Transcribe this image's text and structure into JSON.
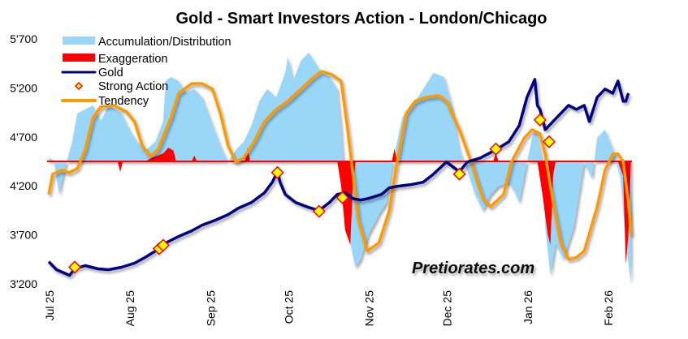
{
  "chart_data": {
    "type": "line",
    "title": "Gold - Smart Investors Action - London/Chicago",
    "watermark": "Pretiorates.com",
    "xlabel": "",
    "ylabel": "",
    "ylim": [
      3200,
      5700
    ],
    "y_ticks": [
      {
        "v": 5700,
        "label": "5'700"
      },
      {
        "v": 5200,
        "label": "5'200"
      },
      {
        "v": 4700,
        "label": "4'700"
      },
      {
        "v": 4200,
        "label": "4'200"
      },
      {
        "v": 3700,
        "label": "3'700"
      },
      {
        "v": 3200,
        "label": "3'200"
      }
    ],
    "x_unit": "days since 1 Jul 2025",
    "xlim": [
      0,
      225
    ],
    "x_ticks": [
      {
        "d": 0,
        "label": "Jul 25"
      },
      {
        "d": 31,
        "label": "Aug 25"
      },
      {
        "d": 62,
        "label": "Sep 25"
      },
      {
        "d": 92,
        "label": "Oct 25"
      },
      {
        "d": 123,
        "label": "Nov 25"
      },
      {
        "d": 153,
        "label": "Dec 25"
      },
      {
        "d": 184,
        "label": "Jan 26"
      },
      {
        "d": 215,
        "label": "Feb 26"
      }
    ],
    "baseline": 4450,
    "legend": {
      "position": "top-left",
      "entries": [
        {
          "key": "acc",
          "label": "Accumulation/Distribution",
          "color": "#99d6f7"
        },
        {
          "key": "exag",
          "label": "Exaggeration",
          "color": "#ff0000"
        },
        {
          "key": "gold",
          "label": "Gold",
          "color": "#000080"
        },
        {
          "key": "strong",
          "label": "Strong Action",
          "color": "#ffff00"
        },
        {
          "key": "tend",
          "label": "Tendency",
          "color": "#ff9900"
        }
      ]
    },
    "series": {
      "acc": [
        [
          0,
          4485
        ],
        [
          2,
          4460
        ],
        [
          4,
          4113
        ],
        [
          6,
          4361
        ],
        [
          9,
          4650
        ],
        [
          11,
          4940
        ],
        [
          14,
          4981
        ],
        [
          17,
          5022
        ],
        [
          20,
          4857
        ],
        [
          23,
          5022
        ],
        [
          28,
          4940
        ],
        [
          31,
          4774
        ],
        [
          34,
          4650
        ],
        [
          37.5,
          4568
        ],
        [
          41,
          4650
        ],
        [
          44,
          4857
        ],
        [
          45,
          5270
        ],
        [
          47,
          5312
        ],
        [
          50,
          5270
        ],
        [
          53,
          5146
        ],
        [
          56,
          5188
        ],
        [
          59,
          5105
        ],
        [
          62.5,
          4857
        ],
        [
          66,
          4609
        ],
        [
          69,
          4444
        ],
        [
          72,
          4568
        ],
        [
          75,
          4650
        ],
        [
          78,
          4816
        ],
        [
          81,
          5064
        ],
        [
          84,
          5188
        ],
        [
          87.5,
          5105
        ],
        [
          91,
          5353
        ],
        [
          92,
          5518
        ],
        [
          94,
          5270
        ],
        [
          97,
          5477
        ],
        [
          100,
          5560
        ],
        [
          102,
          5477
        ],
        [
          105,
          5353
        ],
        [
          108,
          5312
        ],
        [
          111,
          5188
        ],
        [
          112.5,
          4774
        ],
        [
          114,
          4196
        ],
        [
          116,
          3617
        ],
        [
          118,
          3370
        ],
        [
          120,
          3452
        ],
        [
          123,
          3700
        ],
        [
          127,
          3907
        ],
        [
          130,
          4031
        ],
        [
          133,
          4526
        ],
        [
          136,
          4898
        ],
        [
          139,
          5022
        ],
        [
          142,
          5105
        ],
        [
          145,
          5229
        ],
        [
          148,
          5353
        ],
        [
          152,
          5312
        ],
        [
          155,
          5022
        ],
        [
          158,
          4568
        ],
        [
          161,
          4361
        ],
        [
          164,
          4113
        ],
        [
          167,
          3948
        ],
        [
          170,
          4113
        ],
        [
          173,
          4196
        ],
        [
          177,
          4237
        ],
        [
          179,
          4155
        ],
        [
          181,
          4031
        ],
        [
          184,
          4444
        ],
        [
          186,
          4692
        ],
        [
          187.5,
          4774
        ],
        [
          190,
          4444
        ],
        [
          191,
          3783
        ],
        [
          193,
          3287
        ],
        [
          195,
          3617
        ],
        [
          198,
          3452
        ],
        [
          202,
          3783
        ],
        [
          204,
          4113
        ],
        [
          206,
          4444
        ],
        [
          209,
          4279
        ],
        [
          211,
          4692
        ],
        [
          214,
          4774
        ],
        [
          217,
          4568
        ],
        [
          220,
          4279
        ],
        [
          222,
          3617
        ],
        [
          224,
          3204
        ]
      ],
      "exag": [
        [
          [
            26.5,
            4450
          ],
          [
            27.5,
            4340
          ],
          [
            28.5,
            4450
          ]
        ],
        [
          [
            37,
            4450
          ],
          [
            40,
            4490
          ],
          [
            44,
            4530
          ],
          [
            46,
            4590
          ],
          [
            48,
            4560
          ],
          [
            49,
            4450
          ]
        ],
        [
          [
            55,
            4450
          ],
          [
            56,
            4510
          ],
          [
            57,
            4450
          ]
        ],
        [
          [
            75.5,
            4450
          ],
          [
            76.5,
            4590
          ],
          [
            77.5,
            4450
          ]
        ],
        [
          [
            111,
            4450
          ],
          [
            112.5,
            4200
          ],
          [
            114,
            3750
          ],
          [
            116,
            3600
          ],
          [
            117,
            4200
          ],
          [
            118,
            4450
          ]
        ],
        [
          [
            132,
            4450
          ],
          [
            133,
            4580
          ],
          [
            134,
            4450
          ]
        ],
        [
          [
            171,
            4450
          ],
          [
            172,
            4540
          ],
          [
            173,
            4450
          ]
        ],
        [
          [
            188,
            4450
          ],
          [
            190,
            4100
          ],
          [
            192,
            3700
          ],
          [
            193,
            3600
          ],
          [
            194,
            4300
          ],
          [
            195,
            4450
          ]
        ],
        [
          [
            219,
            4450
          ],
          [
            221,
            4300
          ],
          [
            222,
            3400
          ],
          [
            223,
            3700
          ],
          [
            224,
            4450
          ]
        ]
      ],
      "gold": [
        [
          0,
          3427
        ],
        [
          3,
          3345
        ],
        [
          8,
          3287
        ],
        [
          10,
          3353
        ],
        [
          14,
          3386
        ],
        [
          19,
          3353
        ],
        [
          23,
          3345
        ],
        [
          28,
          3370
        ],
        [
          33,
          3411
        ],
        [
          37,
          3469
        ],
        [
          42,
          3551
        ],
        [
          45,
          3617
        ],
        [
          50,
          3684
        ],
        [
          55,
          3741
        ],
        [
          59,
          3799
        ],
        [
          64,
          3849
        ],
        [
          69,
          3907
        ],
        [
          73,
          3973
        ],
        [
          78,
          4031
        ],
        [
          83,
          4130
        ],
        [
          86,
          4237
        ],
        [
          88,
          4345
        ],
        [
          89,
          4237
        ],
        [
          91,
          4113
        ],
        [
          95,
          4031
        ],
        [
          100,
          3981
        ],
        [
          104,
          3948
        ],
        [
          108,
          4031
        ],
        [
          111,
          4113
        ],
        [
          114,
          4130
        ],
        [
          117,
          4072
        ],
        [
          120,
          4055
        ],
        [
          123,
          4072
        ],
        [
          128,
          4113
        ],
        [
          131,
          4179
        ],
        [
          134,
          4196
        ],
        [
          139,
          4212
        ],
        [
          144,
          4237
        ],
        [
          148,
          4320
        ],
        [
          153,
          4444
        ],
        [
          158,
          4345
        ],
        [
          161,
          4444
        ],
        [
          166,
          4485
        ],
        [
          172,
          4568
        ],
        [
          177,
          4650
        ],
        [
          181,
          4816
        ],
        [
          184,
          5105
        ],
        [
          187,
          5287
        ],
        [
          188,
          5022
        ],
        [
          189,
          4981
        ],
        [
          191,
          4774
        ],
        [
          194,
          4857
        ],
        [
          197,
          4940
        ],
        [
          200,
          5022
        ],
        [
          203,
          4981
        ],
        [
          206,
          5022
        ],
        [
          208,
          4857
        ],
        [
          211,
          5105
        ],
        [
          214,
          5188
        ],
        [
          217,
          5146
        ],
        [
          219,
          5270
        ],
        [
          221,
          5064
        ],
        [
          222,
          5064
        ],
        [
          223,
          5146
        ]
      ],
      "strong": [
        [
          10,
          3370
        ],
        [
          42.5,
          3560
        ],
        [
          44,
          3593
        ],
        [
          88,
          4336
        ],
        [
          104,
          3940
        ],
        [
          113,
          4080
        ],
        [
          158,
          4320
        ],
        [
          172,
          4576
        ],
        [
          189,
          4873
        ],
        [
          192.5,
          4650
        ]
      ],
      "tend": [
        [
          0,
          4113
        ],
        [
          1.5,
          4320
        ],
        [
          5,
          4361
        ],
        [
          8,
          4336
        ],
        [
          11,
          4378
        ],
        [
          14,
          4568
        ],
        [
          17,
          4898
        ],
        [
          20,
          5006
        ],
        [
          25,
          5022
        ],
        [
          30,
          4956
        ],
        [
          33,
          4857
        ],
        [
          36,
          4609
        ],
        [
          39,
          4502
        ],
        [
          42,
          4568
        ],
        [
          47,
          4898
        ],
        [
          50,
          5146
        ],
        [
          55,
          5245
        ],
        [
          59,
          5245
        ],
        [
          63,
          5188
        ],
        [
          66,
          4940
        ],
        [
          69,
          4609
        ],
        [
          72,
          4444
        ],
        [
          75,
          4485
        ],
        [
          79,
          4650
        ],
        [
          83,
          4857
        ],
        [
          87.5,
          4981
        ],
        [
          92,
          5064
        ],
        [
          97,
          5188
        ],
        [
          102,
          5312
        ],
        [
          105,
          5369
        ],
        [
          109,
          5336
        ],
        [
          112.5,
          5270
        ],
        [
          115,
          4774
        ],
        [
          119,
          3865
        ],
        [
          122.5,
          3535
        ],
        [
          127,
          3617
        ],
        [
          131,
          3948
        ],
        [
          134,
          4444
        ],
        [
          137.5,
          4940
        ],
        [
          141,
          5064
        ],
        [
          145,
          5105
        ],
        [
          150,
          5122
        ],
        [
          153,
          5064
        ],
        [
          158,
          4774
        ],
        [
          162.5,
          4444
        ],
        [
          167,
          4072
        ],
        [
          170,
          3989
        ],
        [
          175,
          4113
        ],
        [
          178,
          4444
        ],
        [
          183,
          4692
        ],
        [
          186,
          4774
        ],
        [
          189,
          4733
        ],
        [
          191,
          4526
        ],
        [
          194,
          4031
        ],
        [
          197,
          3617
        ],
        [
          200,
          3452
        ],
        [
          203,
          3469
        ],
        [
          206,
          3535
        ],
        [
          211,
          3989
        ],
        [
          214,
          4361
        ],
        [
          217,
          4526
        ],
        [
          219,
          4526
        ],
        [
          221,
          4444
        ],
        [
          223,
          4031
        ],
        [
          224,
          3700
        ]
      ]
    }
  }
}
